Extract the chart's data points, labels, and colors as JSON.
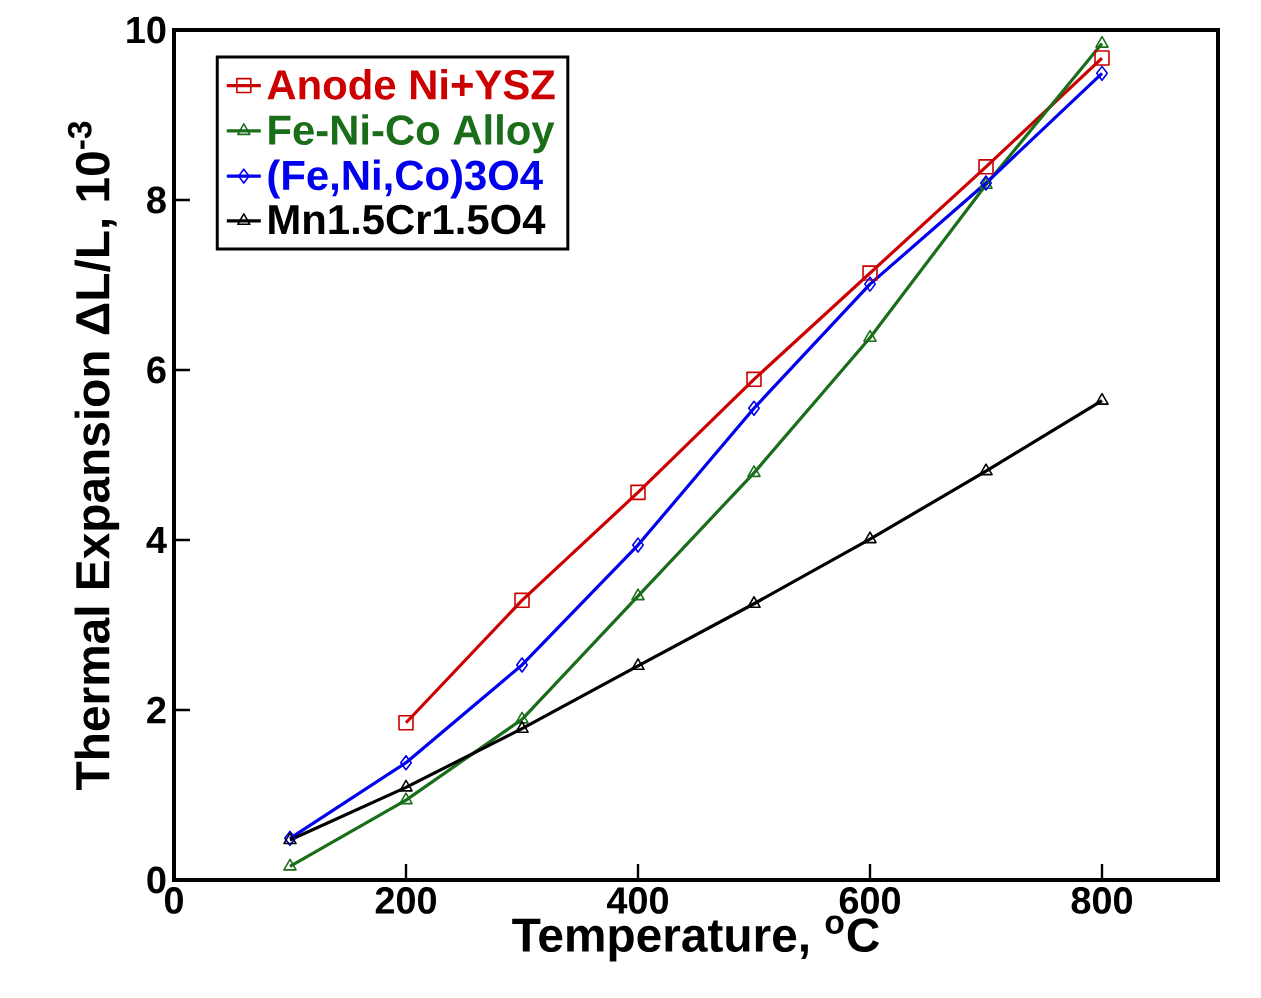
{
  "chart_data": {
    "type": "line",
    "xlabel": "Temperature, $^{o}$C",
    "ylabel": "Thermal Expansion ΔL/L, 10$^{-3}$",
    "xlim": [
      0,
      900
    ],
    "ylim": [
      0,
      10
    ],
    "xticks": [
      0,
      200,
      400,
      600,
      800
    ],
    "yticks": [
      0,
      2,
      4,
      6,
      8,
      10
    ],
    "legend": "top left",
    "grid": false,
    "series": [
      {
        "name": "Anode Ni+YSZ",
        "color": "#cc0000",
        "marker": "square",
        "x": [
          200,
          300,
          400,
          500,
          600,
          700,
          800
        ],
        "values": [
          1.85,
          3.29,
          4.56,
          5.89,
          7.14,
          8.39,
          9.67
        ]
      },
      {
        "name": "Fe-Ni-Co Alloy",
        "color": "#1a6e1a",
        "marker": "triangle",
        "x": [
          100,
          200,
          300,
          400,
          500,
          600,
          700,
          800
        ],
        "values": [
          0.16,
          0.94,
          1.89,
          3.34,
          4.79,
          6.38,
          8.18,
          9.84
        ]
      },
      {
        "name": "(Fe,Ni,Co)3O4",
        "color": "#0000ee",
        "marker": "diamond",
        "x": [
          100,
          200,
          300,
          400,
          500,
          600,
          700,
          800
        ],
        "values": [
          0.49,
          1.38,
          2.53,
          3.94,
          5.55,
          7.01,
          8.2,
          9.49
        ]
      },
      {
        "name": "Mn1.5Cr1.5O4",
        "color": "#000000",
        "marker": "triangle down",
        "x": [
          100,
          200,
          300,
          400,
          500,
          600,
          700,
          800
        ],
        "values": [
          0.47,
          1.09,
          1.78,
          2.52,
          3.25,
          4.01,
          4.81,
          5.64
        ]
      }
    ]
  }
}
